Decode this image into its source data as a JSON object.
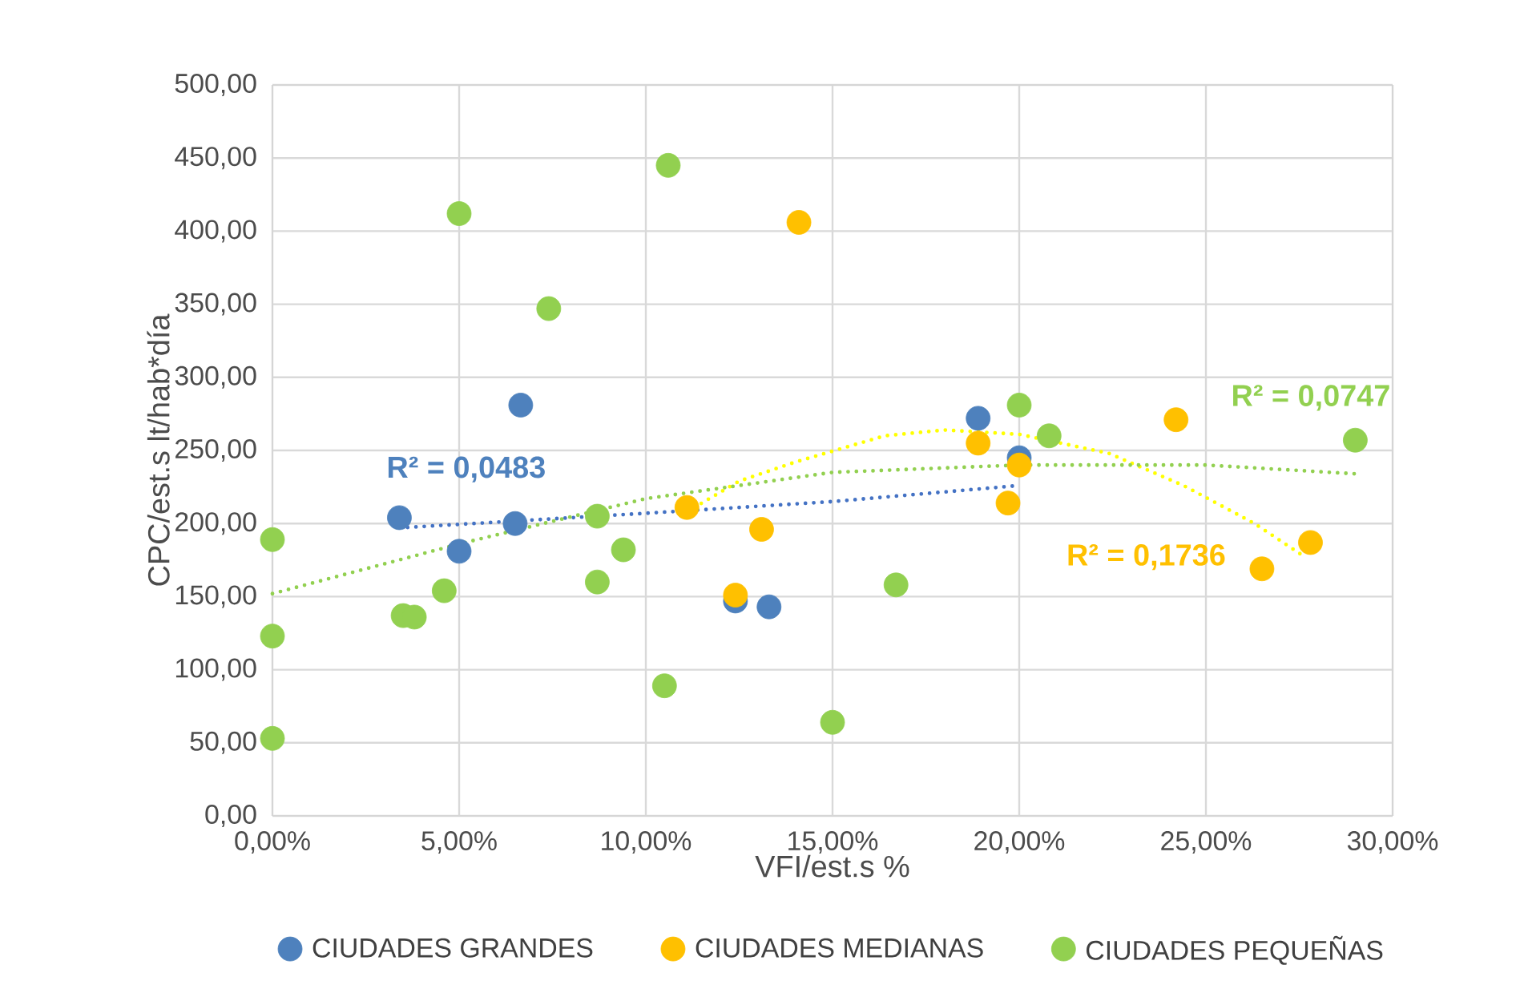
{
  "chart_data": {
    "type": "scatter",
    "xlabel": "VFI/est.s %",
    "ylabel": "CPC/est.s lt/hab*día",
    "legend": "bottom",
    "grid": true,
    "xlim": [
      0,
      30
    ],
    "ylim": [
      0,
      500
    ],
    "xticks": [
      {
        "value": 0,
        "label": "0,00%"
      },
      {
        "value": 5,
        "label": "5,00%"
      },
      {
        "value": 10,
        "label": "10,00%"
      },
      {
        "value": 15,
        "label": "15,00%"
      },
      {
        "value": 20,
        "label": "20,00%"
      },
      {
        "value": 25,
        "label": "25,00%"
      },
      {
        "value": 30,
        "label": "30,00%"
      }
    ],
    "yticks": [
      {
        "value": 0,
        "label": "0,00"
      },
      {
        "value": 50,
        "label": "50,00"
      },
      {
        "value": 100,
        "label": "100,00"
      },
      {
        "value": 150,
        "label": "150,00"
      },
      {
        "value": 200,
        "label": "200,00"
      },
      {
        "value": 250,
        "label": "250,00"
      },
      {
        "value": 300,
        "label": "300,00"
      },
      {
        "value": 350,
        "label": "350,00"
      },
      {
        "value": 400,
        "label": "400,00"
      },
      {
        "value": 450,
        "label": "450,00"
      },
      {
        "value": 500,
        "label": "500,00"
      }
    ],
    "series": [
      {
        "name": "CIUDADES GRANDES",
        "color": "#4e81bd",
        "marker": "circle",
        "x": [
          6.65,
          3.4,
          5.0,
          6.5,
          12.4,
          13.3,
          18.9,
          20.0
        ],
        "values": [
          281,
          204,
          181,
          200,
          147,
          143,
          272,
          245
        ]
      },
      {
        "name": "CIUDADES MEDIANAS",
        "color": "#ffc000",
        "marker": "circle",
        "x": [
          14.1,
          11.1,
          13.1,
          12.4,
          18.9,
          20.0,
          19.7,
          24.2,
          26.5,
          27.8
        ],
        "values": [
          406,
          211,
          196,
          151,
          255,
          240,
          214,
          271,
          169,
          187
        ]
      },
      {
        "name": "CIUDADES PEQUEÑAS",
        "color": "#92d050",
        "marker": "circle",
        "x": [
          5.0,
          10.6,
          7.4,
          0,
          0,
          0,
          3.5,
          3.8,
          4.6,
          8.7,
          9.4,
          8.7,
          10.5,
          15.0,
          16.7,
          20.0,
          20.8,
          29.0
        ],
        "values": [
          412,
          445,
          347,
          189,
          123,
          53,
          137,
          136,
          154,
          205,
          182,
          160,
          89,
          64,
          158,
          281,
          260,
          257
        ]
      },
      {
        "type": "line",
        "color": "#4472c4",
        "line_style": "dotted",
        "marker": "none",
        "x": [
          3.4,
          10,
          15,
          20
        ],
        "values": [
          197,
          207,
          215,
          226
        ]
      },
      {
        "type": "line",
        "color": "#ffff00",
        "line_style": "dotted",
        "marker": "none",
        "x": [
          11.1,
          12.5,
          14,
          16.4,
          18,
          20,
          22.4,
          24.4,
          26.3,
          27.6
        ],
        "values": [
          208,
          229,
          242,
          260,
          264,
          261,
          248,
          226,
          200,
          178
        ]
      },
      {
        "type": "line",
        "color": "#92d050",
        "line_style": "dotted",
        "marker": "none",
        "x": [
          0,
          5,
          10,
          15,
          20,
          25,
          29
        ],
        "values": [
          152,
          186,
          217,
          235,
          240,
          240,
          234
        ]
      }
    ],
    "annotations": [
      "R² = 0,0483",
      "R² = 0,1736",
      "R² = 0,0747"
    ]
  }
}
